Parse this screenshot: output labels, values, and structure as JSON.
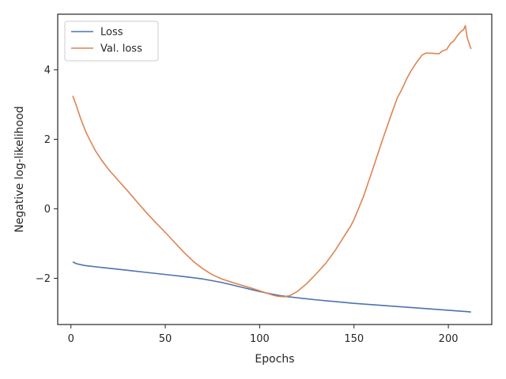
{
  "chart_data": {
    "type": "line",
    "title": "",
    "xlabel": "Epochs",
    "ylabel": "Negative log-likelihood",
    "xlim": [
      -7,
      223
    ],
    "ylim": [
      -3.33,
      5.6
    ],
    "xticks": [
      0,
      50,
      100,
      150,
      200
    ],
    "yticks": [
      -2,
      0,
      2,
      4
    ],
    "grid": false,
    "legend_position": "top-left",
    "series": [
      {
        "name": "Loss",
        "color": "#4c72b0",
        "x": [
          1,
          3,
          7,
          10,
          15,
          20,
          30,
          40,
          50,
          60,
          70,
          80,
          90,
          100,
          105,
          110,
          115,
          120,
          130,
          140,
          150,
          160,
          170,
          180,
          190,
          200,
          210,
          212
        ],
        "y": [
          -1.53,
          -1.58,
          -1.63,
          -1.65,
          -1.68,
          -1.71,
          -1.77,
          -1.83,
          -1.89,
          -1.95,
          -2.02,
          -2.12,
          -2.25,
          -2.38,
          -2.44,
          -2.49,
          -2.53,
          -2.56,
          -2.62,
          -2.67,
          -2.72,
          -2.76,
          -2.8,
          -2.84,
          -2.88,
          -2.92,
          -2.96,
          -2.97
        ]
      },
      {
        "name": "Val. loss",
        "color": "#dd8452",
        "x": [
          1,
          3,
          5,
          8,
          10,
          13,
          16,
          20,
          25,
          30,
          35,
          40,
          45,
          50,
          55,
          60,
          65,
          70,
          75,
          80,
          85,
          90,
          95,
          100,
          105,
          108,
          110,
          113,
          116,
          120,
          125,
          130,
          135,
          140,
          145,
          148,
          150,
          155,
          160,
          165,
          170,
          173,
          175,
          178,
          180,
          183,
          186,
          188,
          190,
          193,
          195,
          197,
          199,
          201,
          203,
          205,
          207,
          208,
          209,
          210,
          212
        ],
        "y": [
          3.25,
          2.95,
          2.62,
          2.2,
          1.98,
          1.67,
          1.42,
          1.13,
          0.82,
          0.52,
          0.2,
          -0.11,
          -0.4,
          -0.68,
          -0.97,
          -1.26,
          -1.52,
          -1.73,
          -1.9,
          -2.02,
          -2.11,
          -2.19,
          -2.27,
          -2.36,
          -2.45,
          -2.5,
          -2.52,
          -2.53,
          -2.5,
          -2.38,
          -2.15,
          -1.87,
          -1.57,
          -1.2,
          -0.77,
          -0.52,
          -0.31,
          0.35,
          1.15,
          1.97,
          2.75,
          3.2,
          3.4,
          3.75,
          3.95,
          4.2,
          4.42,
          4.48,
          4.48,
          4.47,
          4.46,
          4.55,
          4.58,
          4.75,
          4.84,
          5.0,
          5.12,
          5.15,
          5.27,
          4.92,
          4.6
        ]
      }
    ]
  }
}
